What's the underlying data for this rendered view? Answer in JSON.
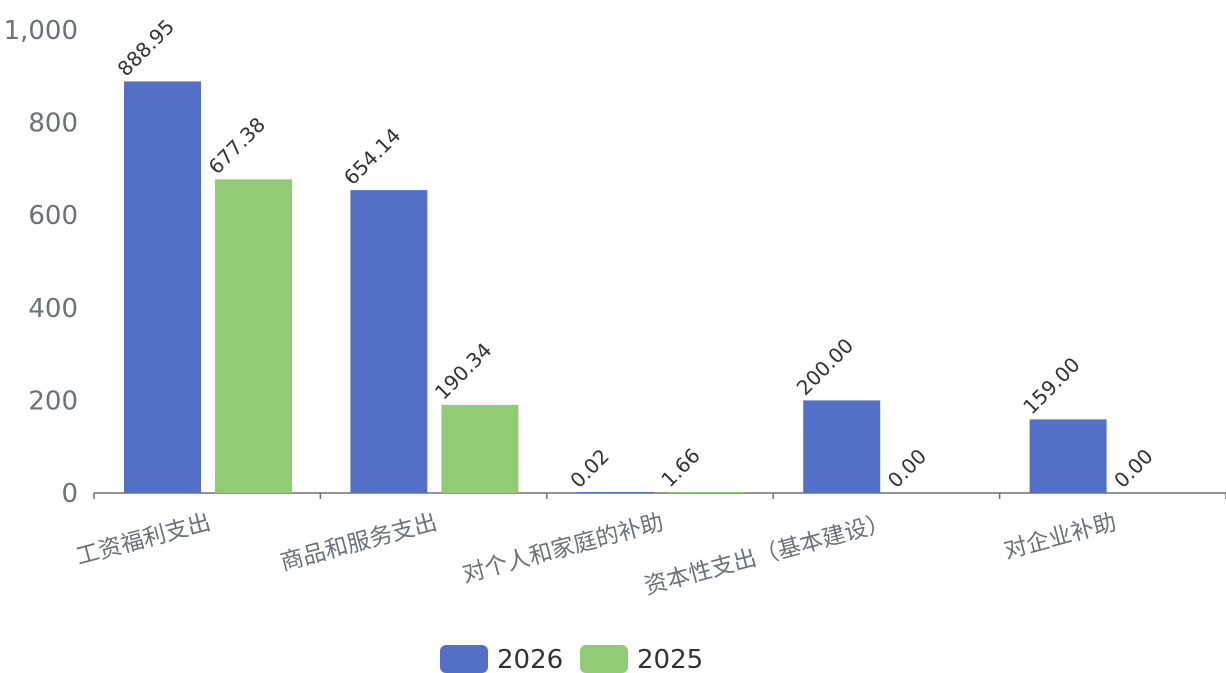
{
  "chart_data": {
    "type": "bar",
    "categories": [
      "工资福利支出",
      "商品和服务支出",
      "对个人和家庭的补助",
      "资本性支出（基本建设）",
      "对企业补助"
    ],
    "series": [
      {
        "name": "2026",
        "color": "#5470c6",
        "values": [
          888.95,
          654.14,
          0.02,
          200.0,
          159.0
        ],
        "labels": [
          "888.95",
          "654.14",
          "0.02",
          "200.00",
          "159.00"
        ]
      },
      {
        "name": "2025",
        "color": "#91cc75",
        "values": [
          677.38,
          190.34,
          1.66,
          0.0,
          0.0
        ],
        "labels": [
          "677.38",
          "190.34",
          "1.66",
          "0.00",
          "0.00"
        ]
      }
    ],
    "ylim": [
      0,
      1000
    ],
    "yticks": [
      0,
      200,
      400,
      600,
      800,
      1000
    ],
    "ytick_labels": [
      "0",
      "200",
      "400",
      "600",
      "800",
      "1,000"
    ],
    "grid": false,
    "legend_position": "bottom-center"
  }
}
